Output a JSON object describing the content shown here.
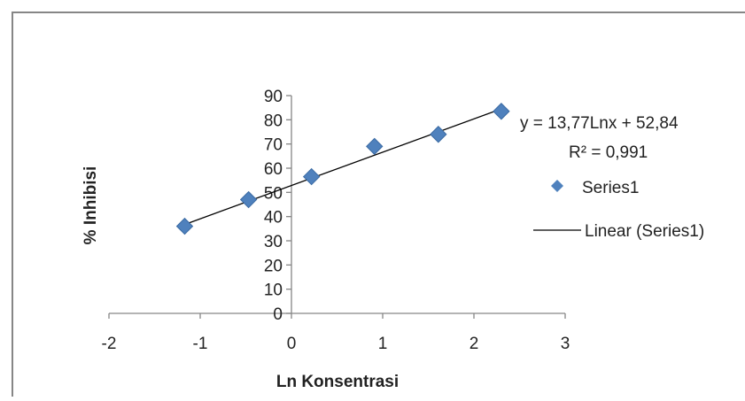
{
  "chart_data": {
    "type": "scatter",
    "title": "",
    "xlabel": "Ln Konsentrasi",
    "ylabel": "% Inhibisi",
    "xlim": [
      -2,
      3
    ],
    "ylim": [
      0,
      90
    ],
    "xticks": [
      -2,
      -1,
      0,
      1,
      2,
      3
    ],
    "yticks": [
      0,
      10,
      20,
      30,
      40,
      50,
      60,
      70,
      80,
      90
    ],
    "x_tick_labels": [
      "-2",
      "-1",
      "0",
      "1",
      "2",
      "3"
    ],
    "y_tick_labels": [
      "0",
      "10",
      "20",
      "30",
      "40",
      "50",
      "60",
      "70",
      "80",
      "90"
    ],
    "grid": false,
    "legend_position": "right",
    "series": [
      {
        "name": "Series1",
        "color": "#4f81bd",
        "marker": "diamond",
        "x": [
          -1.17,
          -0.47,
          0.22,
          0.91,
          1.61,
          2.3
        ],
        "y": [
          36,
          47,
          56.5,
          69,
          74,
          83.5
        ]
      }
    ],
    "trendline": {
      "name": "Linear (Series1)",
      "type": "linear",
      "slope": 13.77,
      "intercept": 52.84,
      "color": "#000000"
    },
    "annotations": {
      "equation": "y = 13,77Lnx + 52,84",
      "r_squared": "R² = 0,991"
    }
  }
}
